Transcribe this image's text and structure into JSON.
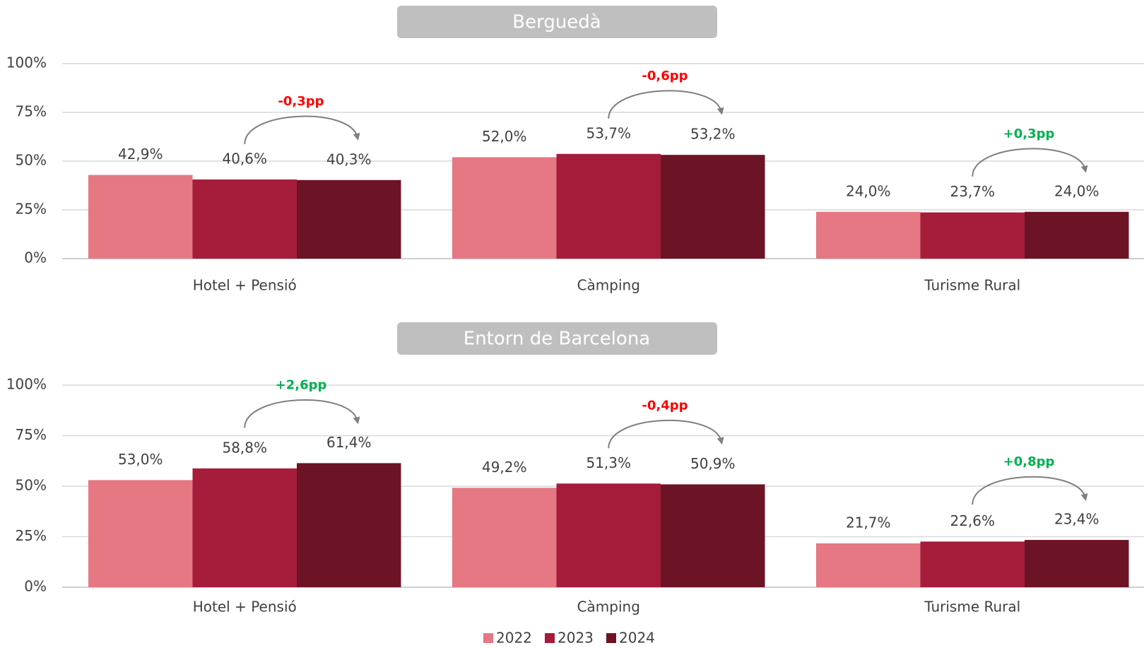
{
  "chart_data": [
    {
      "type": "bar",
      "title": "Berguedà",
      "categories": [
        "Hotel + Pensió",
        "Càmping",
        "Turisme Rural"
      ],
      "series": [
        {
          "name": "2022",
          "color": "#e57883",
          "values": [
            42.9,
            52.0,
            24.0
          ],
          "value_labels": [
            "42,9%",
            "52,0%",
            "24,0%"
          ]
        },
        {
          "name": "2023",
          "color": "#a51d3b",
          "values": [
            40.6,
            53.7,
            23.7
          ],
          "value_labels": [
            "40,6%",
            "53,7%",
            "23,7%"
          ]
        },
        {
          "name": "2024",
          "color": "#6d1326",
          "values": [
            40.3,
            53.2,
            24.0
          ],
          "value_labels": [
            "40,3%",
            "53,2%",
            "24,0%"
          ]
        }
      ],
      "annotations": [
        "-0,3pp",
        "-0,6pp",
        "+0,3pp"
      ],
      "annotation_colors": [
        "#ff0000",
        "#ff0000",
        "#00b050"
      ],
      "ylim": [
        0,
        100
      ],
      "yticks": [
        {
          "value": 0,
          "label": "0%"
        },
        {
          "value": 25,
          "label": "25%"
        },
        {
          "value": 50,
          "label": "50%"
        },
        {
          "value": 75,
          "label": "75%"
        },
        {
          "value": 100,
          "label": "100%"
        }
      ],
      "grid": true
    },
    {
      "type": "bar",
      "title": "Entorn de Barcelona",
      "categories": [
        "Hotel + Pensió",
        "Càmping",
        "Turisme Rural"
      ],
      "series": [
        {
          "values": [
            53.0,
            49.2,
            21.7
          ],
          "value_labels": [
            "53,0%",
            "49,2%",
            "21,7%"
          ]
        },
        {
          "values": [
            58.8,
            51.3,
            22.6
          ],
          "value_labels": [
            "58,8%",
            "51,3%",
            "22,6%"
          ]
        },
        {
          "values": [
            61.4,
            50.9,
            23.4
          ],
          "value_labels": [
            "61,4%",
            "50,9%",
            "23,4%"
          ]
        }
      ],
      "annotations": [
        "+2,6pp",
        "-0,4pp",
        "+0,8pp"
      ],
      "annotation_colors": [
        "#00b050",
        "#ff0000",
        "#00b050"
      ],
      "ylim": [
        0,
        100
      ],
      "yticks": [
        {
          "value": 0,
          "label": "0%"
        },
        {
          "value": 25,
          "label": "25%"
        },
        {
          "value": 50,
          "label": "50%"
        },
        {
          "value": 75,
          "label": "75%"
        },
        {
          "value": 100,
          "label": "100%"
        }
      ],
      "grid": true
    }
  ]
}
